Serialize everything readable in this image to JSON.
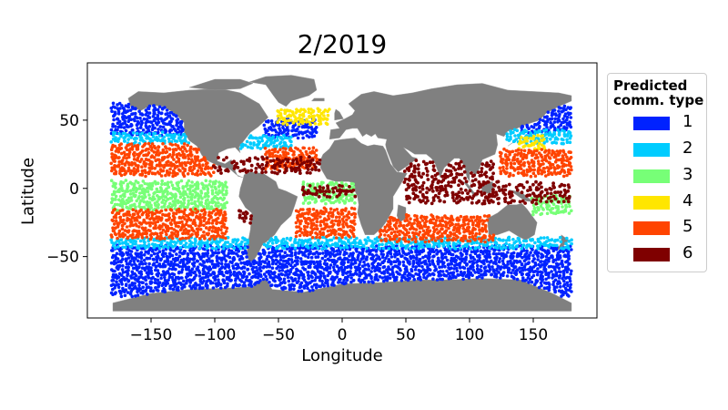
{
  "chart_data": {
    "type": "scatter",
    "title": "2/2019",
    "xlabel": "Longitude",
    "ylabel": "Latitude",
    "xlim": [
      -200,
      200
    ],
    "ylim": [
      -95,
      92
    ],
    "xticks": [
      -150,
      -100,
      -50,
      0,
      50,
      100,
      150
    ],
    "yticks": [
      -50,
      0,
      50
    ],
    "xtick_labels": [
      "−150",
      "−100",
      "−50",
      "0",
      "50",
      "100",
      "150"
    ],
    "ytick_labels": [
      "−50",
      "0",
      "50"
    ],
    "legend_position": "right, outside plot",
    "legend_title": [
      "Predicted",
      "comm. type"
    ],
    "categories": [
      {
        "label": "1",
        "color": "#0022ff"
      },
      {
        "label": "2",
        "color": "#00ccff"
      },
      {
        "label": "3",
        "color": "#77ff77"
      },
      {
        "label": "4",
        "color": "#ffe600"
      },
      {
        "label": "5",
        "color": "#ff4400"
      },
      {
        "label": "6",
        "color": "#7f0000"
      }
    ],
    "land_color": "#808080",
    "series": [
      {
        "name": "1",
        "regions": [
          {
            "lon": [
              -180,
              180
            ],
            "lat": [
              -78,
              -42
            ]
          },
          {
            "lon": [
              -180,
              -125
            ],
            "lat": [
              40,
              62
            ]
          },
          {
            "lon": [
              -125,
              -85
            ],
            "lat": [
              40,
              55
            ]
          },
          {
            "lon": [
              -60,
              -20
            ],
            "lat": [
              38,
              50
            ]
          },
          {
            "lon": [
              140,
              180
            ],
            "lat": [
              42,
              60
            ]
          }
        ]
      },
      {
        "name": "2",
        "regions": [
          {
            "lon": [
              -180,
              180
            ],
            "lat": [
              -43,
              -36
            ]
          },
          {
            "lon": [
              -180,
              -100
            ],
            "lat": [
              34,
              40
            ]
          },
          {
            "lon": [
              -80,
              -40
            ],
            "lat": [
              30,
              38
            ]
          },
          {
            "lon": [
              130,
              180
            ],
            "lat": [
              34,
              42
            ]
          }
        ]
      },
      {
        "name": "3",
        "regions": [
          {
            "lon": [
              -180,
              -90
            ],
            "lat": [
              -15,
              5
            ]
          },
          {
            "lon": [
              -30,
              10
            ],
            "lat": [
              -10,
              5
            ]
          },
          {
            "lon": [
              150,
              180
            ],
            "lat": [
              -18,
              -5
            ]
          }
        ]
      },
      {
        "name": "4",
        "regions": [
          {
            "lon": [
              -50,
              -10
            ],
            "lat": [
              48,
              58
            ]
          },
          {
            "lon": [
              140,
              160
            ],
            "lat": [
              30,
              38
            ]
          }
        ]
      },
      {
        "name": "5",
        "regions": [
          {
            "lon": [
              -180,
              -90
            ],
            "lat": [
              -36,
              -15
            ]
          },
          {
            "lon": [
              -180,
              -100
            ],
            "lat": [
              10,
              33
            ]
          },
          {
            "lon": [
              -35,
              10
            ],
            "lat": [
              -35,
              -15
            ]
          },
          {
            "lon": [
              -60,
              -20
            ],
            "lat": [
              15,
              30
            ]
          },
          {
            "lon": [
              30,
              120
            ],
            "lat": [
              -38,
              -20
            ]
          },
          {
            "lon": [
              125,
              180
            ],
            "lat": [
              10,
              28
            ]
          }
        ]
      },
      {
        "name": "6",
        "regions": [
          {
            "lon": [
              -100,
              0
            ],
            "lat": [
              12,
              22
            ]
          },
          {
            "lon": [
              -30,
              10
            ],
            "lat": [
              -5,
              2
            ]
          },
          {
            "lon": [
              50,
              120
            ],
            "lat": [
              -10,
              20
            ]
          },
          {
            "lon": [
              110,
              180
            ],
            "lat": [
              -10,
              5
            ]
          },
          {
            "lon": [
              -80,
              -70
            ],
            "lat": [
              -25,
              -15
            ]
          }
        ]
      }
    ]
  }
}
